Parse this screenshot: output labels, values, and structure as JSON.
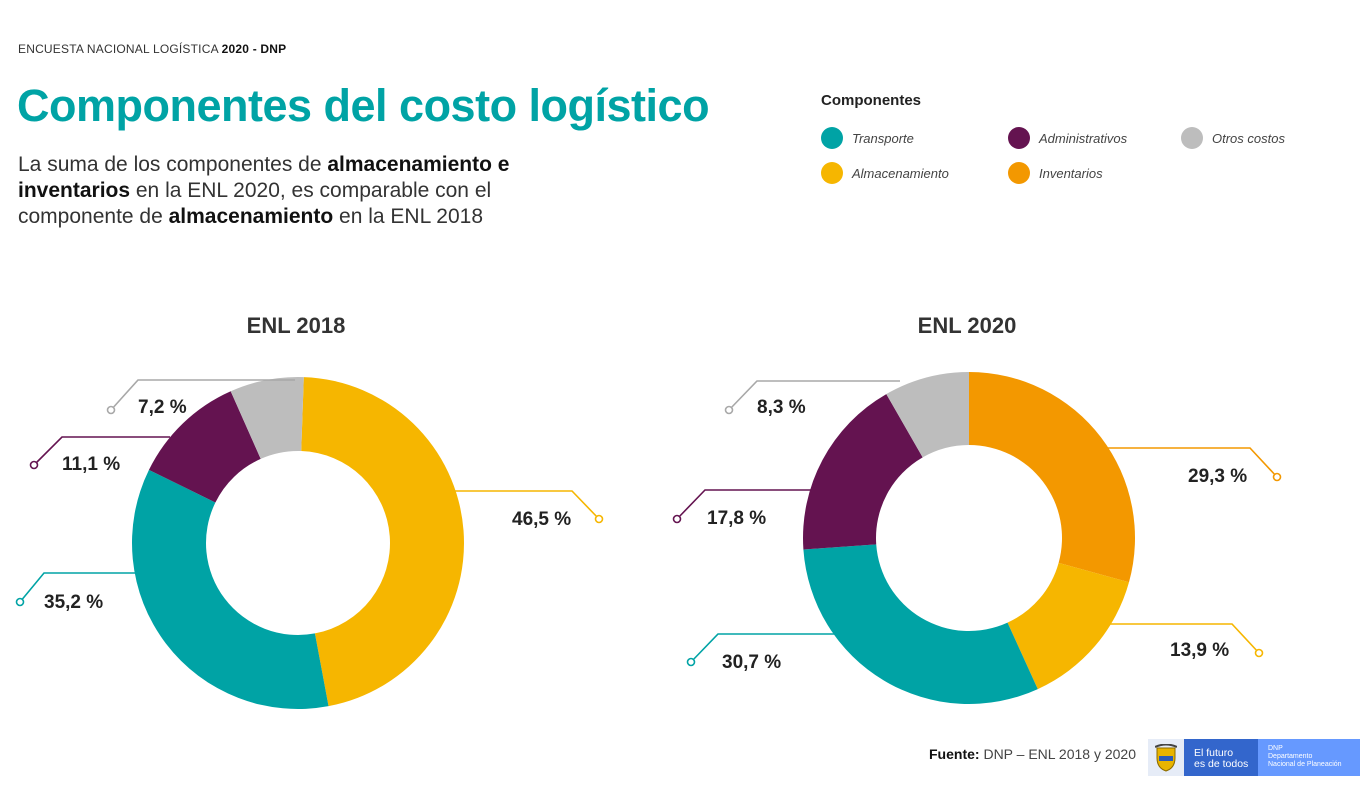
{
  "header": {
    "kicker": "ENCUESTA NACIONAL LOGÍSTICA",
    "kicker_bold": "2020 - DNP",
    "title": "Componentes del costo logístico",
    "subtitle": {
      "p1": "La suma de los componentes de ",
      "b1": "almacenamiento e inventarios",
      "p2": " en la ENL 2020, es comparable con el componente de ",
      "b2": "almacenamiento",
      "p3": " en la ENL 2018"
    }
  },
  "legend": {
    "title": "Componentes",
    "items": [
      {
        "label": "Transporte",
        "color": "#00a3a5"
      },
      {
        "label": "Administrativos",
        "color": "#641350"
      },
      {
        "label": "Otros costos",
        "color": "#bdbdbd"
      },
      {
        "label": "Almacenamiento",
        "color": "#f6b600"
      },
      {
        "label": "Inventarios",
        "color": "#f39800"
      }
    ]
  },
  "chart_data": [
    {
      "type": "pie",
      "donut": true,
      "title": "ENL 2018",
      "slices": [
        {
          "name": "Almacenamiento",
          "value": 46.5,
          "label": "46,5 %",
          "color": "#f6b600"
        },
        {
          "name": "Transporte",
          "value": 35.2,
          "label": "35,2 %",
          "color": "#00a3a5"
        },
        {
          "name": "Administrativos",
          "value": 11.1,
          "label": "11,1 %",
          "color": "#641350"
        },
        {
          "name": "Otros costos",
          "value": 7.2,
          "label": "7,2 %",
          "color": "#bdbdbd"
        }
      ]
    },
    {
      "type": "pie",
      "donut": true,
      "title": "ENL 2020",
      "slices": [
        {
          "name": "Inventarios",
          "value": 29.3,
          "label": "29,3 %",
          "color": "#f39800"
        },
        {
          "name": "Almacenamiento",
          "value": 13.9,
          "label": "13,9 %",
          "color": "#f6b600"
        },
        {
          "name": "Transporte",
          "value": 30.7,
          "label": "30,7 %",
          "color": "#00a3a5"
        },
        {
          "name": "Administrativos",
          "value": 17.8,
          "label": "17,8 %",
          "color": "#641350"
        },
        {
          "name": "Otros costos",
          "value": 8.3,
          "label": "8,3 %",
          "color": "#bdbdbd"
        }
      ]
    }
  ],
  "footer": {
    "source_label": "Fuente:",
    "source_text": " DNP – ENL 2018 y 2020",
    "logo_line1": "El futuro",
    "logo_line2": "es de todos",
    "logo_dnp": "DNP",
    "logo_dept1": "Departamento",
    "logo_dept2": "Nacional de Planeación"
  }
}
